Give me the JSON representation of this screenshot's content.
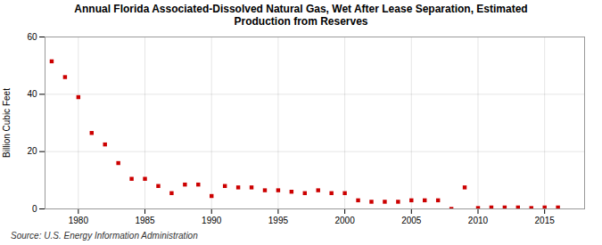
{
  "chart_data": {
    "type": "scatter",
    "title": "Annual Florida Associated-Dissolved Natural Gas, Wet After Lease Separation, Estimated\nProduction from Reserves",
    "ylabel": "Billion Cubic Feet",
    "source": "Source: U.S. Energy Information Administration",
    "x": [
      1978,
      1979,
      1980,
      1981,
      1982,
      1983,
      1984,
      1985,
      1986,
      1987,
      1988,
      1989,
      1990,
      1991,
      1992,
      1993,
      1994,
      1995,
      1996,
      1997,
      1998,
      1999,
      2000,
      2001,
      2002,
      2003,
      2004,
      2005,
      2006,
      2007,
      2008,
      2009,
      2010,
      2011,
      2012,
      2013,
      2014,
      2015,
      2016
    ],
    "values": [
      51.5,
      46.0,
      39.0,
      26.5,
      22.5,
      16.0,
      10.5,
      10.5,
      8.0,
      5.5,
      8.5,
      8.5,
      4.5,
      8.0,
      7.5,
      7.5,
      6.5,
      6.5,
      6.0,
      5.5,
      6.5,
      5.5,
      5.5,
      3.0,
      2.5,
      2.5,
      2.5,
      3.0,
      3.0,
      3.0,
      0.0,
      7.5,
      0.3,
      0.5,
      0.5,
      0.5,
      0.3,
      0.5,
      0.5
    ],
    "color": "#cc0000",
    "marker": "square",
    "xlim": [
      1977.5,
      2018
    ],
    "xticks": [
      1980,
      1985,
      1990,
      1995,
      2000,
      2005,
      2010,
      2015
    ],
    "ylim": [
      0,
      60
    ],
    "yticks": [
      0,
      20,
      40,
      60
    ],
    "grid": true
  }
}
